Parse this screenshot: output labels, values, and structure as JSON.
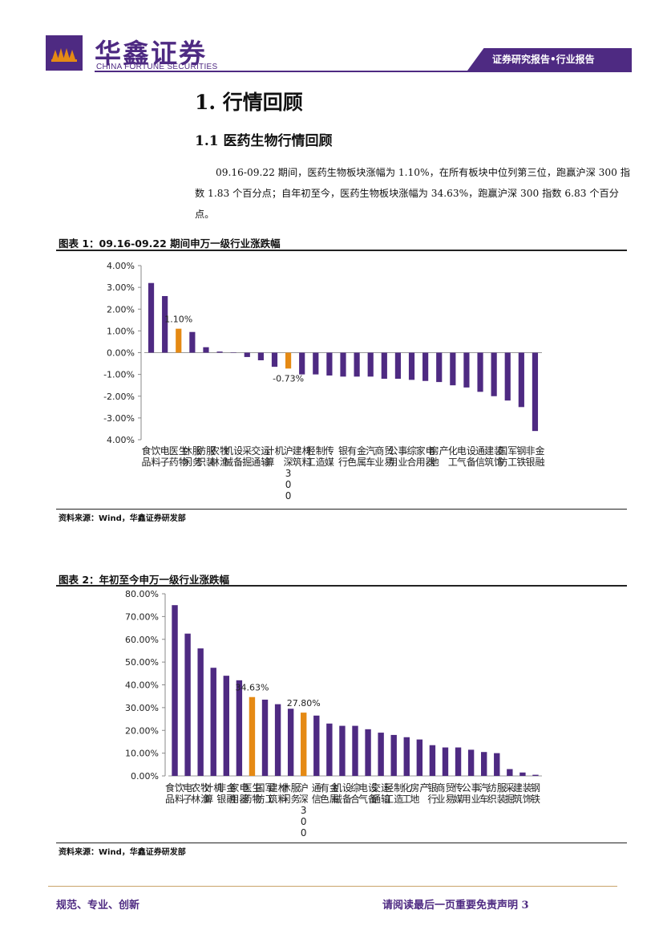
{
  "header": {
    "company_cn": "华鑫证券",
    "company_en": "CHINA FORTUNE SECURITIES",
    "report_type": "证券研究报告•行业报告"
  },
  "section": {
    "heading1": "1. 行情回顾",
    "heading2": "1.1 医药生物行情回顾",
    "paragraph": "09.16-09.22 期间，医药生物板块涨幅为 1.10%，在所有板块中位列第三位，跑赢沪深 300 指数 1.83 个百分点；自年初至今，医药生物板块涨幅为 34.63%，跑赢沪深 300 指数 6.83 个百分点。"
  },
  "figure1": {
    "title": "图表 1：09.16-09.22 期间申万一级行业涨跌幅",
    "source": "资料来源：Wind，华鑫证券研发部"
  },
  "figure2": {
    "title": "图表 2：年初至今申万一级行业涨跌幅",
    "source": "资料来源：Wind，华鑫证券研发部"
  },
  "footer": {
    "left": "规范、专业、创新",
    "right": "请阅读最后一页重要免责声明 3"
  },
  "colors": {
    "brand": "#4e2a82",
    "bar": "#4e2a82",
    "highlight": "#e58a14"
  },
  "chart_data": [
    {
      "type": "bar",
      "categories": [
        "食品饮料",
        "电子",
        "医药生物",
        "休闲服务",
        "纺织服装",
        "农林牧渔",
        "机械设备",
        "采掘",
        "交通运输",
        "计算机",
        "沪深300",
        "建筑材料",
        "轻工制造",
        "传媒",
        "银行",
        "有色金属",
        "汽车",
        "商业贸易",
        "公用事业",
        "综合",
        "家用电器",
        "房地产",
        "化工",
        "电气设备",
        "通信",
        "建筑装饰",
        "国防军工",
        "钢铁",
        "非银金融"
      ],
      "values": [
        3.2,
        2.6,
        1.1,
        0.95,
        0.25,
        0.05,
        0.0,
        -0.2,
        -0.35,
        -0.65,
        -0.73,
        -1.0,
        -1.0,
        -1.05,
        -1.1,
        -1.1,
        -1.1,
        -1.2,
        -1.2,
        -1.25,
        -1.3,
        -1.35,
        -1.5,
        -1.6,
        -1.8,
        -2.0,
        -2.2,
        -2.5,
        -3.6
      ],
      "highlight": [
        "医药生物",
        "沪深300"
      ],
      "data_labels": {
        "医药生物": "1.10%",
        "沪深300": "-0.73%"
      },
      "yticks": [
        "4.00%",
        "3.00%",
        "2.00%",
        "1.00%",
        "0.00%",
        "-1.00%",
        "-2.00%",
        "-3.00%",
        "4.00%"
      ],
      "ylim": [
        -4,
        4
      ]
    },
    {
      "type": "bar",
      "categories": [
        "食品饮料",
        "电子",
        "农林牧渔",
        "计算机",
        "非银金融",
        "家用电器",
        "医药生物",
        "国防军工",
        "建筑材料",
        "休闲服务",
        "沪深300",
        "通信",
        "有色金属",
        "机械设备",
        "综合",
        "电气设备",
        "交通运输",
        "轻工制造",
        "化工",
        "房地产",
        "银行",
        "商业贸易",
        "传媒",
        "公用事业",
        "汽车",
        "纺织服装",
        "采掘",
        "建筑装饰",
        "钢铁"
      ],
      "values": [
        75,
        62.5,
        56,
        47.5,
        44,
        42,
        34.63,
        33.5,
        31.5,
        29.5,
        27.8,
        26.5,
        23,
        22,
        22,
        20.5,
        19,
        18,
        17,
        16,
        13.5,
        12.5,
        12.5,
        11.5,
        10.5,
        10,
        3,
        1.5,
        0.5
      ],
      "highlight": [
        "医药生物",
        "沪深300"
      ],
      "data_labels": {
        "医药生物": "34.63%",
        "沪深300": "27.80%"
      },
      "yticks": [
        "80.00%",
        "70.00%",
        "60.00%",
        "50.00%",
        "40.00%",
        "30.00%",
        "20.00%",
        "10.00%",
        "0.00%"
      ],
      "ylim": [
        0,
        80
      ]
    }
  ]
}
